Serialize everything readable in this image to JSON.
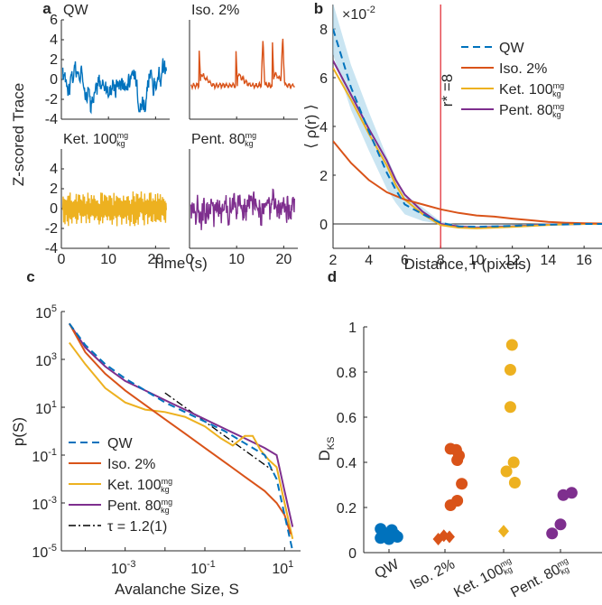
{
  "colors": {
    "qw": "#0072BD",
    "iso": "#D95319",
    "ket": "#EDB120",
    "pent": "#7E2F8E",
    "rstar_line": "#E0202A",
    "band": "#A6D3EA",
    "tau": "#000000"
  },
  "chart_data": [
    {
      "panel": "a",
      "type": "line",
      "ylabel": "Z-scored Trace",
      "xlabel": "Time (s)",
      "x_ticks": [
        0,
        10,
        20
      ],
      "xlim": [
        0,
        23
      ],
      "subplots": [
        {
          "title": "QW",
          "series": "qw",
          "ylim": [
            -4,
            6
          ],
          "yticks": [
            -4,
            -2,
            0,
            2,
            4,
            6
          ],
          "style": "noisy_slow"
        },
        {
          "title": "Iso. 2%",
          "series": "iso",
          "ylim": [
            -4,
            6
          ],
          "yticks": [],
          "style": "bursts"
        },
        {
          "title": "Ket. 100",
          "title_unit": {
            "num": "mg",
            "den": "kg"
          },
          "series": "ket",
          "ylim": [
            -4,
            6
          ],
          "yticks": [
            -4,
            -2,
            0,
            2,
            4
          ],
          "style": "dense"
        },
        {
          "title": "Pent. 80",
          "title_unit": {
            "num": "mg",
            "den": "kg"
          },
          "series": "pent",
          "ylim": [
            -4,
            6
          ],
          "yticks": [],
          "style": "noisy_fast"
        }
      ]
    },
    {
      "panel": "b",
      "type": "line",
      "xlabel": "Distance, r (pixels)",
      "ylabel": "⟨ ρ(r) ⟩",
      "scale_label": "×10",
      "scale_exp": "-2",
      "xlim": [
        2,
        17
      ],
      "ylim": [
        -1,
        9
      ],
      "x_ticks": [
        2,
        4,
        6,
        8,
        10,
        12,
        14,
        16
      ],
      "y_ticks": [
        0,
        2,
        4,
        6,
        8
      ],
      "rstar": 8,
      "rstar_label": "r* =8",
      "series": [
        {
          "name": "QW",
          "key": "qw",
          "dashed": true,
          "x": [
            2,
            3,
            4,
            5,
            5.5,
            6,
            7,
            8,
            9,
            10,
            11,
            12,
            13,
            14,
            15,
            16,
            17
          ],
          "y": [
            8.0,
            5.6,
            3.8,
            2.1,
            1.4,
            0.8,
            0.4,
            0.05,
            -0.1,
            -0.12,
            -0.1,
            -0.08,
            -0.05,
            -0.03,
            -0.02,
            0.0,
            0.0
          ]
        },
        {
          "name": "Iso. 2%",
          "key": "iso",
          "x": [
            2,
            3,
            4,
            5,
            6,
            7,
            8,
            9,
            10,
            11,
            12,
            13,
            14,
            15,
            16,
            17
          ],
          "y": [
            3.4,
            2.5,
            1.8,
            1.3,
            1.0,
            0.8,
            0.6,
            0.45,
            0.35,
            0.3,
            0.22,
            0.15,
            0.08,
            0.05,
            0.03,
            0.02
          ]
        },
        {
          "name": "Ket. 100",
          "key": "ket",
          "unit": {
            "num": "mg",
            "den": "kg"
          },
          "x": [
            2,
            3,
            4,
            5,
            5.5,
            6,
            7,
            8,
            9,
            10,
            11,
            12,
            13,
            14,
            15,
            16,
            17
          ],
          "y": [
            6.4,
            5.1,
            3.7,
            2.4,
            1.6,
            1.0,
            0.4,
            -0.05,
            -0.15,
            -0.18,
            -0.15,
            -0.12,
            -0.08,
            -0.04,
            -0.01,
            0.0,
            0.0
          ]
        },
        {
          "name": "Pent. 80",
          "key": "pent",
          "unit": {
            "num": "mg",
            "den": "kg"
          },
          "x": [
            2,
            3,
            4,
            5,
            5.5,
            6,
            7,
            8,
            9,
            10,
            11,
            12,
            13,
            14,
            15,
            16,
            17
          ],
          "y": [
            6.7,
            5.3,
            3.9,
            2.6,
            1.8,
            1.2,
            0.5,
            0.0,
            -0.1,
            -0.15,
            -0.12,
            -0.1,
            -0.06,
            -0.03,
            -0.01,
            0.0,
            0.0
          ]
        }
      ]
    },
    {
      "panel": "c",
      "type": "line",
      "xlabel": "Avalanche Size, S",
      "ylabel": "p(S)",
      "scale": "log-log",
      "xlim_log10": [
        -4.6,
        1.4
      ],
      "ylim_log10": [
        -5,
        5
      ],
      "x_tick_labels": [
        {
          "mant": "10",
          "exp": "-3",
          "log": -3
        },
        {
          "mant": "10",
          "exp": "-1",
          "log": -1
        },
        {
          "mant": "10",
          "exp": "1",
          "log": 1
        }
      ],
      "y_tick_labels": [
        {
          "mant": "10",
          "exp": "5",
          "log": 5
        },
        {
          "mant": "10",
          "exp": "3",
          "log": 3
        },
        {
          "mant": "10",
          "exp": "1",
          "log": 1
        },
        {
          "mant": "10",
          "exp": "-1",
          "log": -1
        },
        {
          "mant": "10",
          "exp": "-3",
          "log": -3
        },
        {
          "mant": "10",
          "exp": "-5",
          "log": -5
        }
      ],
      "series": [
        {
          "name": "QW",
          "key": "qw",
          "dashed": true,
          "logx": [
            -4.4,
            -4.0,
            -3.5,
            -3.0,
            -2.5,
            -2.0,
            -1.5,
            -1.0,
            -0.5,
            0.0,
            0.5,
            0.8,
            1.0,
            1.2
          ],
          "logy": [
            4.5,
            3.6,
            2.8,
            2.2,
            1.7,
            1.2,
            0.8,
            0.4,
            0.0,
            -0.5,
            -1.0,
            -2.0,
            -3.5,
            -5.0
          ]
        },
        {
          "name": "Iso. 2%",
          "key": "iso",
          "logx": [
            -4.4,
            -4.0,
            -3.5,
            -3.0,
            -2.5,
            -2.0,
            -1.5,
            -1.0,
            -0.5,
            0.0,
            0.5,
            0.8,
            1.0,
            1.15
          ],
          "logy": [
            4.5,
            3.3,
            2.4,
            1.7,
            1.1,
            0.5,
            -0.1,
            -0.7,
            -1.3,
            -1.9,
            -2.5,
            -3.0,
            -3.5,
            -4.3
          ]
        },
        {
          "name": "Ket. 100",
          "key": "ket",
          "unit": {
            "num": "mg",
            "den": "kg"
          },
          "logx": [
            -4.4,
            -4.0,
            -3.5,
            -3.0,
            -2.5,
            -2.0,
            -1.5,
            -1.0,
            -0.6,
            -0.3,
            0.0,
            0.2,
            0.4,
            0.6,
            0.8,
            1.0,
            1.2
          ],
          "logy": [
            3.7,
            2.8,
            1.8,
            1.2,
            0.9,
            0.8,
            0.6,
            0.2,
            -0.3,
            -0.6,
            -0.2,
            -0.2,
            -0.8,
            -1.2,
            -1.5,
            -3.0,
            -4.5
          ]
        },
        {
          "name": "Pent. 80",
          "key": "pent",
          "unit": {
            "num": "mg",
            "den": "kg"
          },
          "logx": [
            -4.4,
            -4.0,
            -3.5,
            -3.0,
            -2.5,
            -2.0,
            -1.5,
            -1.0,
            -0.5,
            0.0,
            0.5,
            0.8,
            1.0,
            1.2
          ],
          "logy": [
            4.5,
            3.5,
            2.7,
            2.1,
            1.7,
            1.3,
            0.9,
            0.5,
            0.1,
            -0.3,
            -0.7,
            -1.0,
            -2.5,
            -4.0
          ]
        },
        {
          "name": "τ = 1.2(1)",
          "key": "tau",
          "dashdot": true,
          "logx": [
            -2.0,
            0.7
          ],
          "logy": [
            1.6,
            -1.64
          ]
        }
      ]
    },
    {
      "panel": "d",
      "type": "scatter",
      "ylabel": "D",
      "ylabel_sub": "KS",
      "ylim": [
        0,
        1
      ],
      "y_ticks": [
        0,
        0.2,
        0.4,
        0.6,
        0.8,
        1
      ],
      "categories": [
        {
          "label": "QW",
          "key": "qw"
        },
        {
          "label": "Iso. 2%",
          "key": "iso"
        },
        {
          "label": "Ket. 100",
          "key": "ket",
          "unit": {
            "num": "mg",
            "den": "kg"
          }
        },
        {
          "label": "Pent. 80",
          "key": "pent",
          "unit": {
            "num": "mg",
            "den": "kg"
          }
        }
      ],
      "points": [
        {
          "cat": 0,
          "dx": -0.15,
          "y": 0.105,
          "marker": "circle"
        },
        {
          "cat": 0,
          "dx": 0.05,
          "y": 0.1,
          "marker": "circle"
        },
        {
          "cat": 0,
          "dx": -0.1,
          "y": 0.085,
          "marker": "circle"
        },
        {
          "cat": 0,
          "dx": 0.1,
          "y": 0.08,
          "marker": "circle"
        },
        {
          "cat": 0,
          "dx": -0.05,
          "y": 0.075,
          "marker": "circle"
        },
        {
          "cat": 0,
          "dx": 0.15,
          "y": 0.07,
          "marker": "circle"
        },
        {
          "cat": 0,
          "dx": -0.15,
          "y": 0.065,
          "marker": "circle"
        },
        {
          "cat": 0,
          "dx": 0.0,
          "y": 0.06,
          "marker": "circle"
        },
        {
          "cat": 1,
          "dx": 0.1,
          "y": 0.46,
          "marker": "circle"
        },
        {
          "cat": 1,
          "dx": 0.2,
          "y": 0.455,
          "marker": "circle"
        },
        {
          "cat": 1,
          "dx": 0.25,
          "y": 0.43,
          "marker": "circle"
        },
        {
          "cat": 1,
          "dx": 0.22,
          "y": 0.41,
          "marker": "circle"
        },
        {
          "cat": 1,
          "dx": 0.3,
          "y": 0.305,
          "marker": "circle"
        },
        {
          "cat": 1,
          "dx": 0.22,
          "y": 0.23,
          "marker": "circle"
        },
        {
          "cat": 1,
          "dx": 0.1,
          "y": 0.21,
          "marker": "circle"
        },
        {
          "cat": 1,
          "dx": -0.12,
          "y": 0.06,
          "marker": "diamond"
        },
        {
          "cat": 1,
          "dx": -0.02,
          "y": 0.075,
          "marker": "diamond"
        },
        {
          "cat": 1,
          "dx": 0.08,
          "y": 0.07,
          "marker": "diamond"
        },
        {
          "cat": 2,
          "dx": 0.15,
          "y": 0.92,
          "marker": "circle"
        },
        {
          "cat": 2,
          "dx": 0.12,
          "y": 0.81,
          "marker": "circle"
        },
        {
          "cat": 2,
          "dx": 0.12,
          "y": 0.645,
          "marker": "circle"
        },
        {
          "cat": 2,
          "dx": 0.18,
          "y": 0.4,
          "marker": "circle"
        },
        {
          "cat": 2,
          "dx": 0.05,
          "y": 0.36,
          "marker": "circle"
        },
        {
          "cat": 2,
          "dx": 0.2,
          "y": 0.31,
          "marker": "circle"
        },
        {
          "cat": 2,
          "dx": 0.0,
          "y": 0.095,
          "marker": "diamond"
        },
        {
          "cat": 3,
          "dx": 0.2,
          "y": 0.265,
          "marker": "circle"
        },
        {
          "cat": 3,
          "dx": 0.05,
          "y": 0.255,
          "marker": "circle"
        },
        {
          "cat": 3,
          "dx": 0.0,
          "y": 0.125,
          "marker": "circle"
        },
        {
          "cat": 3,
          "dx": -0.15,
          "y": 0.085,
          "marker": "circle"
        }
      ]
    }
  ]
}
